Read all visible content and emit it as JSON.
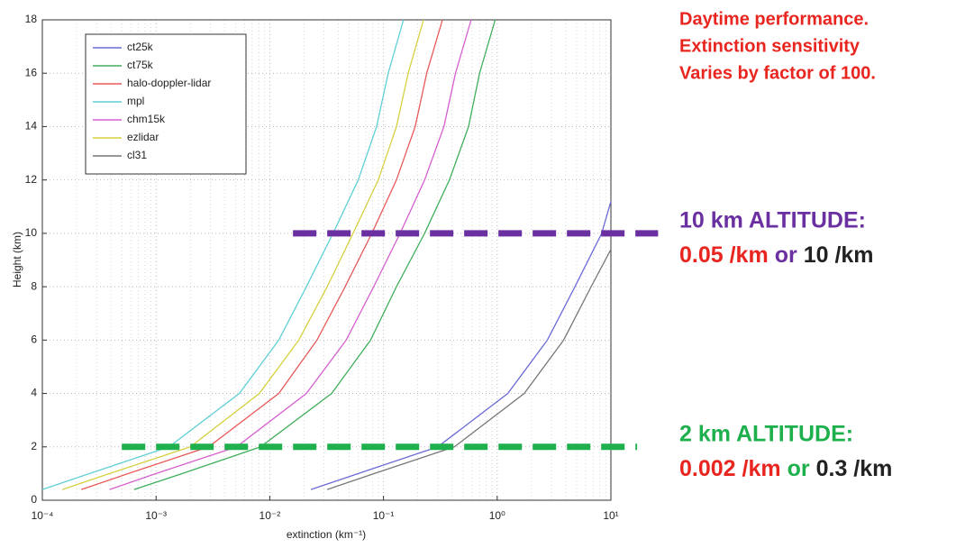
{
  "chart_data": {
    "type": "line",
    "ylabel": "Height (km)",
    "xlabel": "extinction (km⁻¹)",
    "xscale": "log",
    "grid": true,
    "xlim": [
      0.0001,
      10
    ],
    "ylim": [
      0,
      18
    ],
    "xticks": [
      {
        "value": 0.0001,
        "label": "10⁻⁴"
      },
      {
        "value": 0.001,
        "label": "10⁻³"
      },
      {
        "value": 0.01,
        "label": "10⁻²"
      },
      {
        "value": 0.1,
        "label": "10⁻¹"
      },
      {
        "value": 1,
        "label": "10⁰"
      },
      {
        "value": 10,
        "label": "10¹"
      }
    ],
    "yticks": [
      0,
      2,
      4,
      6,
      8,
      10,
      12,
      14,
      16,
      18
    ],
    "legend": "upper left",
    "series": [
      {
        "name": "ct25k",
        "color": "#6b6bd6",
        "x": [
          0.023,
          0.06,
          0.3,
          1.24,
          2.76,
          4.83,
          8.3,
          10
        ],
        "values": [
          0.4,
          1,
          2,
          4,
          6,
          8,
          10,
          11.2
        ]
      },
      {
        "name": "ct75k",
        "color": "#3fae5a",
        "x": [
          0.00064,
          0.0017,
          0.0083,
          0.035,
          0.077,
          0.13,
          0.23,
          0.38,
          0.56,
          0.7,
          0.96
        ],
        "values": [
          0.4,
          1,
          2,
          4,
          6,
          8,
          10,
          12,
          14,
          16,
          18
        ]
      },
      {
        "name": "halo-doppler-lidar",
        "color": "#e85a5a",
        "x": [
          0.00022,
          0.00057,
          0.0029,
          0.012,
          0.026,
          0.046,
          0.079,
          0.13,
          0.19,
          0.24,
          0.33
        ],
        "values": [
          0.4,
          1,
          2,
          4,
          6,
          8,
          10,
          12,
          14,
          16,
          18
        ]
      },
      {
        "name": "mpl",
        "color": "#5fcfd6",
        "x": [
          0.0001,
          0.00026,
          0.0013,
          0.0054,
          0.012,
          0.021,
          0.036,
          0.06,
          0.087,
          0.11,
          0.15
        ],
        "values": [
          0.4,
          1,
          2,
          4,
          6,
          8,
          10,
          12,
          14,
          16,
          18
        ]
      },
      {
        "name": "chm15k",
        "color": "#d65fd0",
        "x": [
          0.00039,
          0.001,
          0.0051,
          0.021,
          0.047,
          0.082,
          0.14,
          0.23,
          0.34,
          0.43,
          0.59
        ],
        "values": [
          0.4,
          1,
          2,
          4,
          6,
          8,
          10,
          12,
          14,
          16,
          18
        ]
      },
      {
        "name": "ezlidar",
        "color": "#d6d040",
        "x": [
          0.00015,
          0.00039,
          0.002,
          0.0081,
          0.018,
          0.032,
          0.054,
          0.09,
          0.13,
          0.165,
          0.225
        ],
        "values": [
          0.4,
          1,
          2,
          4,
          6,
          8,
          10,
          12,
          14,
          16,
          18
        ]
      },
      {
        "name": "cl31",
        "color": "#777777",
        "x": [
          0.032,
          0.083,
          0.42,
          1.73,
          3.84,
          6.7,
          10
        ],
        "values": [
          0.4,
          1,
          2,
          4,
          6,
          8,
          9.4
        ]
      }
    ],
    "reference_lines": [
      {
        "y": 10,
        "x": [
          0.016,
          26
        ],
        "color": "#6a2fa0"
      },
      {
        "y": 2,
        "x": [
          0.0005,
          17
        ],
        "color": "#1fb04e"
      }
    ],
    "annotations": {
      "note": {
        "color": "#e8251f",
        "lines": [
          "Daytime performance.",
          "Extinction sensitivity",
          "Varies by factor of 100."
        ]
      },
      "alt10": {
        "title": "10 km ALTITUDE:",
        "color": "#6a2fa0",
        "parts": [
          {
            "text": "0.05 /km",
            "color": "#e8251f"
          },
          {
            "text": "or",
            "color": "#6a2fa0"
          },
          {
            "text": "10 /km",
            "color": "#222222"
          }
        ]
      },
      "alt2": {
        "title": "2 km ALTITUDE:",
        "color": "#1fb04e",
        "parts": [
          {
            "text": "0.002 /km",
            "color": "#e8251f"
          },
          {
            "text": "or",
            "color": "#1fb04e"
          },
          {
            "text": "0.3 /km",
            "color": "#222222"
          }
        ]
      }
    }
  }
}
